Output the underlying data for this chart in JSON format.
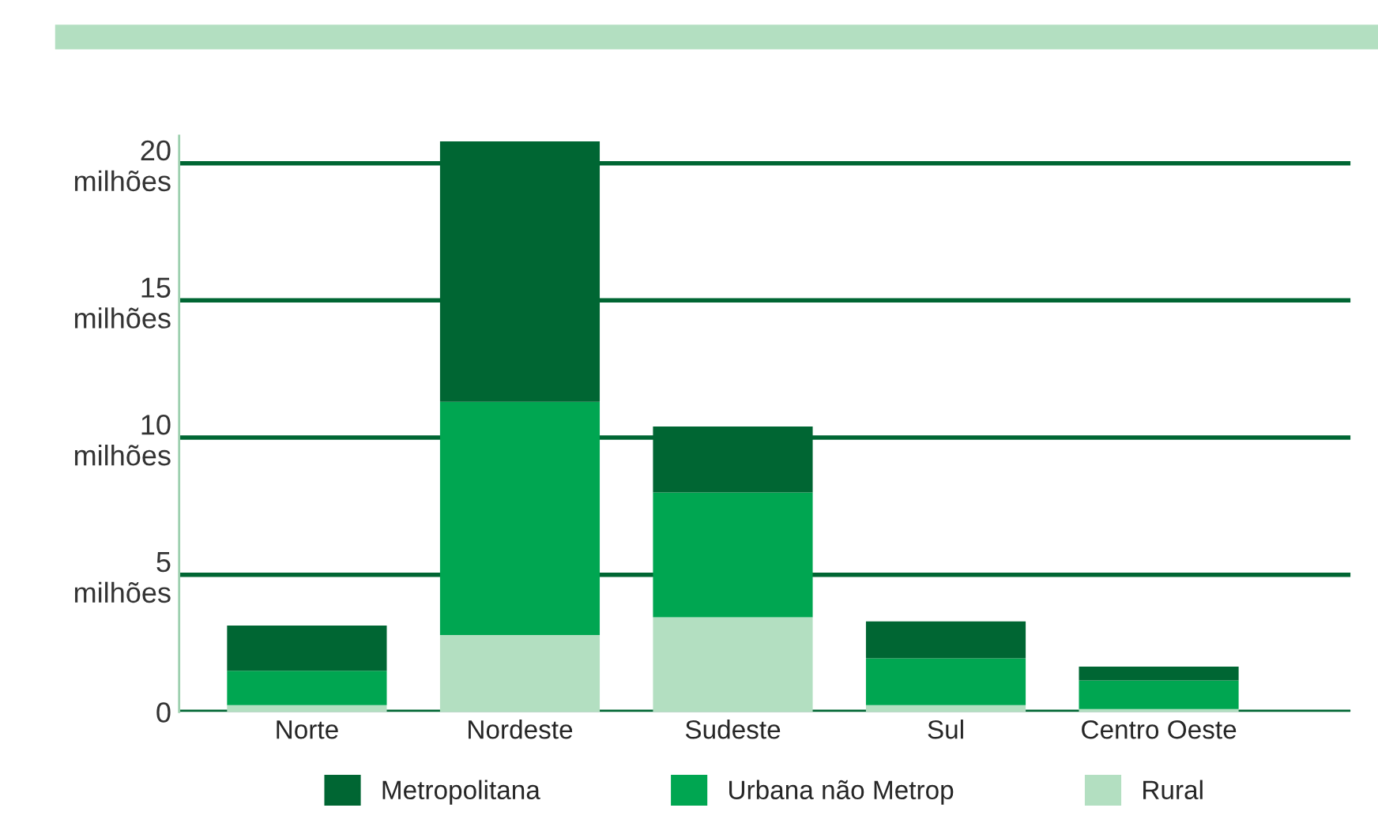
{
  "chart_data": {
    "type": "bar",
    "stacked": true,
    "categories": [
      "Norte",
      "Nordeste",
      "Sudeste",
      "Sul",
      "Centro Oeste"
    ],
    "series": [
      {
        "name": "Rural",
        "color": "#b3dfc1",
        "values": [
          0.25,
          2.8,
          3.45,
          0.25,
          0.1
        ]
      },
      {
        "name": "Urbana não Metrop",
        "color": "#00a651",
        "values": [
          1.25,
          8.5,
          4.55,
          1.7,
          1.05
        ]
      },
      {
        "name": "Metropolitana",
        "color": "#006633",
        "values": [
          1.65,
          9.5,
          2.4,
          1.35,
          0.5
        ]
      }
    ],
    "ylim": [
      0,
      21
    ],
    "yticks": [
      0,
      {
        "value": 5,
        "label": "5\nmilhões"
      },
      {
        "value": 10,
        "label": "10\nmilhões"
      },
      {
        "value": 15,
        "label": "15\nmilhões"
      },
      {
        "value": 20,
        "label": "20\nmilhões"
      }
    ],
    "grid": "y",
    "legend": "bottom"
  }
}
